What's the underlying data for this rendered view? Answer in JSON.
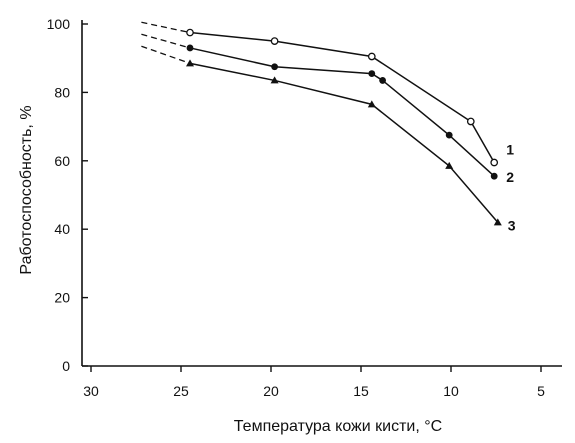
{
  "chart_data": {
    "type": "line",
    "xlabel": "Температура кожи кисти, °С",
    "ylabel": "Работоспособность, %",
    "xlim": [
      30,
      5
    ],
    "ylim": [
      0,
      100
    ],
    "x_reversed": true,
    "xticks": [
      "30",
      "25",
      "20",
      "15",
      "10",
      "5"
    ],
    "yticks": [
      "0",
      "20",
      "40",
      "60",
      "80",
      "100"
    ],
    "grid": false,
    "series": [
      {
        "name": "1",
        "marker": "open-circle",
        "x": [
          24.5,
          19.8,
          14.4,
          8.9,
          7.6
        ],
        "y": [
          97.5,
          95,
          90.5,
          71.5,
          59.5
        ],
        "extrapolated": {
          "x": [
            27.2,
            24.5
          ],
          "y": [
            100.5,
            97.5
          ]
        }
      },
      {
        "name": "2",
        "marker": "filled-circle",
        "x": [
          24.5,
          19.8,
          14.4,
          13.8,
          10.1,
          7.6
        ],
        "y": [
          93,
          87.5,
          85.5,
          83.5,
          67.5,
          55.5
        ],
        "extrapolated": {
          "x": [
            27.2,
            24.5
          ],
          "y": [
            97,
            93
          ]
        }
      },
      {
        "name": "3",
        "marker": "filled-triangle",
        "x": [
          24.5,
          19.8,
          14.4,
          10.1,
          7.4
        ],
        "y": [
          88.5,
          83.5,
          76.5,
          58.5,
          42
        ],
        "extrapolated": {
          "x": [
            27.2,
            24.5
          ],
          "y": [
            93.5,
            88.5
          ]
        }
      }
    ]
  }
}
